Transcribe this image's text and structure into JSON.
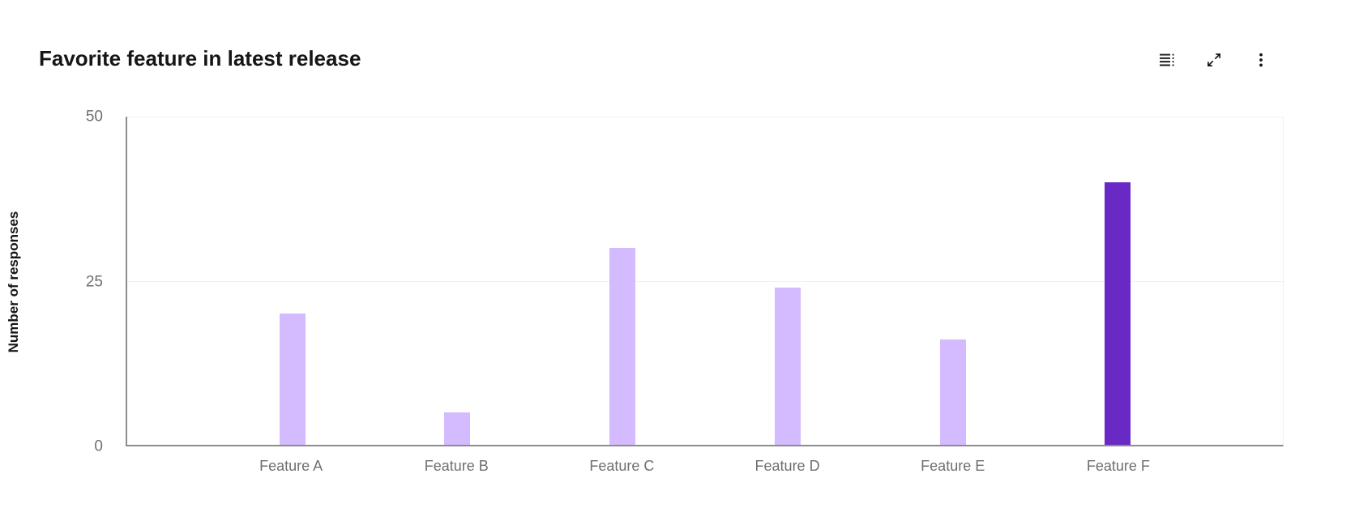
{
  "header": {
    "title": "Favorite feature in latest release",
    "toolbar": {
      "icons": [
        "data-table-icon",
        "expand-icon",
        "overflow-menu-icon"
      ]
    }
  },
  "chart_data": {
    "type": "bar",
    "title": "Favorite feature in latest release",
    "categories": [
      "Feature A",
      "Feature B",
      "Feature C",
      "Feature D",
      "Feature E",
      "Feature F"
    ],
    "values": [
      20,
      5,
      30,
      24,
      16,
      40
    ],
    "highlight_index": 5,
    "highlight_category": "Feature F",
    "xlabel": "",
    "ylabel": "Number of responses",
    "ylim": [
      0,
      50
    ],
    "yticks": [
      0,
      25,
      50
    ],
    "grid": "horizontal",
    "legend": "none",
    "colors": {
      "bar": "#d4bbff",
      "bar_highlight": "#6929c4",
      "axis_line": "#8d8d8d",
      "gridline": "#f0f0f0",
      "tick_text": "#6f6f6f",
      "title_text": "#161616"
    }
  }
}
